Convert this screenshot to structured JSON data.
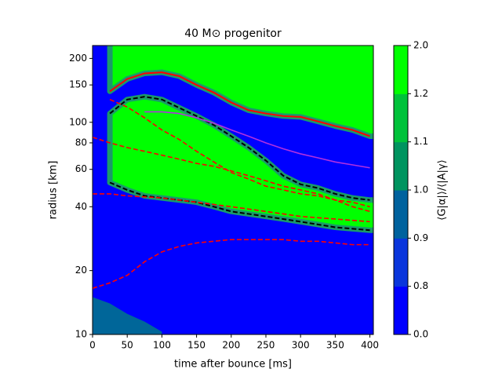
{
  "chart_data": {
    "type": "contour",
    "title": "40 M⊙ progenitor",
    "xlabel": "time after bounce [ms]",
    "ylabel": "radius [km]",
    "xlim": [
      0,
      405
    ],
    "ylim": [
      10,
      230
    ],
    "yscale": "log",
    "xticks": [
      0,
      50,
      100,
      150,
      200,
      250,
      300,
      350,
      400
    ],
    "yticks": [
      10,
      20,
      40,
      60,
      80,
      100,
      150,
      200
    ],
    "background": "#0000ff",
    "x": [
      0,
      25,
      50,
      75,
      100,
      125,
      150,
      175,
      200,
      225,
      250,
      275,
      300,
      325,
      350,
      375,
      400
    ],
    "regions": [
      {
        "color": "#00ff00",
        "edge_color": "#ff0000",
        "edge_dash": false,
        "lower": [
          null,
          140,
          160,
          170,
          172,
          165,
          150,
          138,
          124,
          114,
          110,
          107,
          106,
          101,
          96,
          92,
          86
        ]
      },
      {
        "color": "#00ff00",
        "edge_color": "#000000",
        "edge_dash": true,
        "upper": [
          null,
          110,
          128,
          132,
          128,
          117,
          107,
          97,
          86,
          76,
          66,
          56,
          51,
          49,
          46,
          44,
          43
        ],
        "lower": [
          null,
          52,
          48,
          45,
          44,
          43,
          42,
          40,
          38,
          37,
          36,
          35,
          34,
          33,
          32,
          31.5,
          31
        ]
      },
      {
        "color": "#006699",
        "upper": [
          15,
          14,
          12.5,
          11.5,
          10.3,
          null,
          null,
          null,
          null,
          null,
          null,
          null,
          null,
          null,
          null,
          null,
          null
        ]
      }
    ],
    "lines": [
      {
        "color": "#ff0000",
        "dashed": true,
        "values": [
          null,
          128,
          118,
          105,
          92,
          83,
          73,
          65,
          58,
          54,
          50,
          48,
          46,
          45,
          43,
          42,
          40
        ]
      },
      {
        "color": "#ff0000",
        "dashed": true,
        "values": [
          85,
          80,
          76,
          73,
          70,
          67,
          64,
          62,
          59,
          56,
          53,
          50,
          48,
          46,
          43,
          40,
          38
        ]
      },
      {
        "color": "#ff0000",
        "dashed": true,
        "values": [
          46,
          46,
          45,
          44.5,
          44,
          43,
          42,
          41,
          40,
          39,
          38,
          37,
          36,
          35.5,
          35,
          34.5,
          34
        ]
      },
      {
        "color": "#ff0000",
        "dashed": true,
        "values": [
          16.5,
          17.5,
          19,
          22,
          24.5,
          26,
          27,
          27.5,
          28,
          28,
          28,
          28,
          27.5,
          27.5,
          27,
          26.5,
          26.5
        ]
      },
      {
        "color": "#b030e0",
        "dashed": false,
        "values": [
          null,
          null,
          null,
          112,
          112,
          110,
          105,
          99,
          92,
          86,
          80,
          75,
          71,
          68,
          65,
          63,
          61
        ]
      }
    ],
    "colorbar": {
      "label": "⟨G|α|⟩/⟨|A|γ⟩",
      "boundaries": [
        {
          "value": 0,
          "label": "0.0"
        },
        0.8,
        0.9,
        {
          "value": 1,
          "label": "1.0"
        },
        1.1,
        1.2,
        {
          "value": 2,
          "label": "2.0"
        }
      ],
      "colors": [
        "#0000ff",
        "#0a36dc",
        "#00629e",
        "#00945f",
        "#00c23a",
        "#00ff00"
      ]
    }
  }
}
